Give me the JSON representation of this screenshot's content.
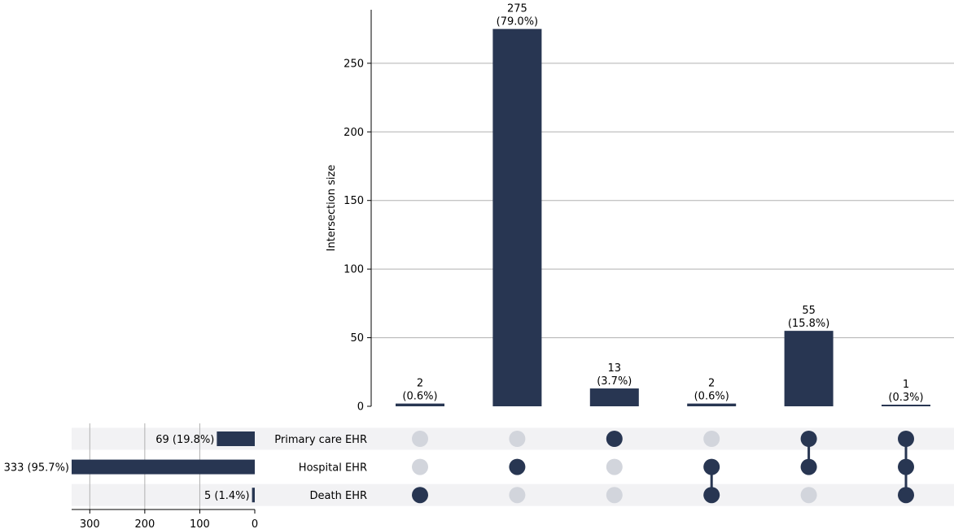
{
  "chart_data": {
    "type": "upset",
    "ylabel": "Intersection size",
    "ylim": [
      0,
      289
    ],
    "yticks": [
      0,
      50,
      100,
      150,
      200,
      250
    ],
    "sets": [
      {
        "name": "Primary care EHR",
        "size": 69,
        "label": "69 (19.8%)"
      },
      {
        "name": "Hospital EHR",
        "size": 333,
        "label": "333 (95.7%)"
      },
      {
        "name": "Death EHR",
        "size": 5,
        "label": "5 (1.4%)"
      }
    ],
    "set_size_xlim": [
      0,
      333
    ],
    "set_size_ticks": [
      300,
      200,
      100,
      0
    ],
    "intersections": [
      {
        "members": [
          "Death EHR"
        ],
        "value": 2,
        "count_label": "2",
        "pct_label": "(0.6%)"
      },
      {
        "members": [
          "Hospital EHR"
        ],
        "value": 275,
        "count_label": "275",
        "pct_label": "(79.0%)"
      },
      {
        "members": [
          "Primary care EHR"
        ],
        "value": 13,
        "count_label": "13",
        "pct_label": "(3.7%)"
      },
      {
        "members": [
          "Hospital EHR",
          "Death EHR"
        ],
        "value": 2,
        "count_label": "2",
        "pct_label": "(0.6%)"
      },
      {
        "members": [
          "Primary care EHR",
          "Hospital EHR"
        ],
        "value": 55,
        "count_label": "55",
        "pct_label": "(15.8%)"
      },
      {
        "members": [
          "Primary care EHR",
          "Hospital EHR",
          "Death EHR"
        ],
        "value": 1,
        "count_label": "1",
        "pct_label": "(0.3%)"
      }
    ],
    "grid": true,
    "colors": {
      "bar": "#283652",
      "dot_active": "#283652",
      "dot_inactive": "#d2d5dc",
      "stripe": "#f2f2f4",
      "grid": "#b0b0b0"
    }
  }
}
